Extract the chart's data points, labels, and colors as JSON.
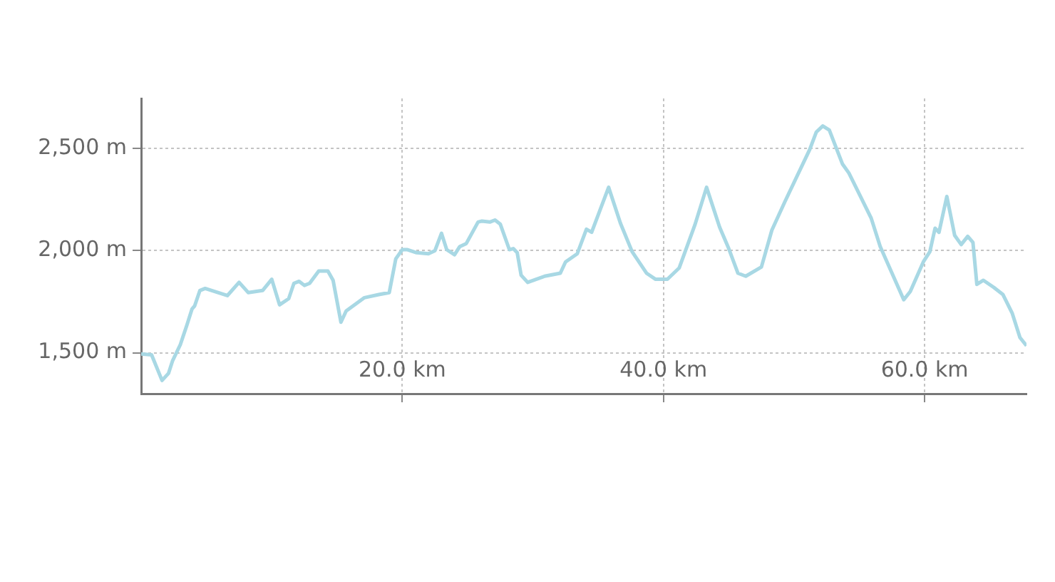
{
  "chart_data": {
    "type": "line",
    "x": [
      0,
      0.8,
      1.6,
      2.1,
      2.4,
      3.0,
      3.5,
      3.9,
      4.1,
      4.5,
      4.9,
      6.6,
      7.5,
      8.2,
      9.3,
      10.0,
      10.6,
      11.3,
      11.7,
      12.1,
      12.5,
      12.9,
      13.6,
      14.3,
      14.7,
      15.3,
      15.7,
      17.1,
      18.2,
      19.0,
      19.5,
      20.0,
      20.4,
      21.1,
      22.0,
      22.5,
      23.0,
      23.4,
      24.0,
      24.4,
      24.9,
      25.8,
      26.1,
      26.7,
      27.1,
      27.5,
      28.2,
      28.5,
      28.8,
      29.1,
      29.6,
      30.9,
      32.1,
      32.5,
      33.4,
      34.1,
      34.5,
      35.8,
      36.7,
      37.6,
      38.7,
      39.4,
      40.3,
      41.2,
      42.4,
      43.3,
      44.3,
      45.0,
      45.7,
      46.3,
      47.5,
      48.3,
      49.3,
      51.2,
      51.7,
      52.2,
      52.7,
      53.7,
      54.2,
      55.9,
      56.6,
      58.4,
      58.9,
      59.9,
      60.4,
      60.8,
      61.1,
      61.7,
      62.3,
      62.8,
      63.3,
      63.7,
      64.0,
      64.5,
      65.3,
      66.0,
      66.7,
      67.3,
      67.8
    ],
    "series": [
      {
        "color": "#a8d8e4",
        "values": [
          1495,
          1490,
          1365,
          1400,
          1460,
          1540,
          1635,
          1715,
          1730,
          1805,
          1815,
          1780,
          1845,
          1795,
          1805,
          1860,
          1735,
          1765,
          1840,
          1850,
          1830,
          1840,
          1900,
          1900,
          1855,
          1650,
          1705,
          1770,
          1785,
          1795,
          1960,
          2005,
          2005,
          1990,
          1985,
          2000,
          2085,
          2005,
          1980,
          2020,
          2035,
          2140,
          2145,
          2140,
          2150,
          2130,
          2005,
          2010,
          1990,
          1880,
          1845,
          1875,
          1890,
          1945,
          1985,
          2105,
          2090,
          2310,
          2135,
          1995,
          1890,
          1860,
          1860,
          1915,
          2125,
          2310,
          2115,
          2010,
          1890,
          1875,
          1920,
          2100,
          2240,
          2495,
          2580,
          2610,
          2590,
          2425,
          2380,
          2160,
          2020,
          1760,
          1800,
          1945,
          1995,
          2110,
          2090,
          2265,
          2075,
          2030,
          2070,
          2040,
          1835,
          1855,
          1820,
          1785,
          1695,
          1575,
          1535
        ]
      }
    ],
    "xlim": [
      0,
      67.8
    ],
    "ylim": [
      1300,
      2745
    ],
    "xticks": [
      {
        "value": 20,
        "label": "20.0 km"
      },
      {
        "value": 40,
        "label": "40.0 km"
      },
      {
        "value": 60,
        "label": "60.0 km"
      }
    ],
    "yticks": [
      {
        "value": 1500,
        "label": "1,500 m"
      },
      {
        "value": 2000,
        "label": "2,000 m"
      },
      {
        "value": 2500,
        "label": "2,500 m"
      }
    ],
    "grid": true,
    "legend": false,
    "marker": "none"
  }
}
